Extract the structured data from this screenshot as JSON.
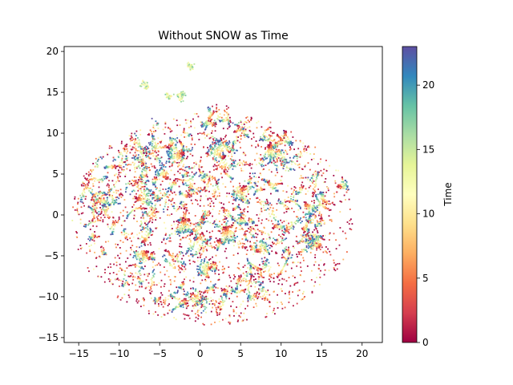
{
  "chart_data": {
    "type": "scatter",
    "title": "Without SNOW as Time",
    "xlabel": "",
    "ylabel": "",
    "xlim": [
      -16.8,
      22.5
    ],
    "ylim": [
      -15.6,
      20.6
    ],
    "xticks": [
      -15,
      -10,
      -5,
      0,
      5,
      10,
      15,
      20
    ],
    "yticks": [
      -15,
      -10,
      -5,
      0,
      5,
      10,
      15,
      20
    ],
    "grid": false,
    "colormap": "Spectral",
    "colorbar": {
      "label": "Time",
      "range": [
        0,
        23
      ],
      "ticks": [
        0,
        5,
        10,
        15,
        20
      ]
    },
    "seed": 7,
    "point_count_approx": 6000,
    "clusters": [
      {
        "x": -1.5,
        "y": 18.5,
        "r": 0.6
      },
      {
        "x": -2.0,
        "y": 15.0,
        "r": 0.8
      },
      {
        "x": -6.5,
        "y": 15.5,
        "r": 0.7
      },
      {
        "x": -4.0,
        "y": 14.8,
        "r": 0.4
      },
      {
        "x": -2.0,
        "y": 7.5,
        "r": 1.5
      },
      {
        "x": 3.0,
        "y": 7.0,
        "r": 1.6
      },
      {
        "x": 8.5,
        "y": 8.5,
        "r": 1.3
      },
      {
        "x": 5.5,
        "y": 3.5,
        "r": 1.4
      },
      {
        "x": -8.0,
        "y": 2.0,
        "r": 1.6
      },
      {
        "x": -2.0,
        "y": -0.5,
        "r": 1.4
      },
      {
        "x": 3.0,
        "y": -1.5,
        "r": 1.6
      },
      {
        "x": -6.5,
        "y": -4.5,
        "r": 1.4
      },
      {
        "x": 1.5,
        "y": -6.5,
        "r": 1.3
      },
      {
        "x": 13.0,
        "y": 1.5,
        "r": 1.2
      },
      {
        "x": 15.0,
        "y": -4.0,
        "r": 1.2
      },
      {
        "x": 17.0,
        "y": 3.5,
        "r": 0.9
      },
      {
        "x": -4.0,
        "y": 4.5,
        "r": 1.2
      },
      {
        "x": 7.0,
        "y": -4.5,
        "r": 1.2
      }
    ]
  }
}
